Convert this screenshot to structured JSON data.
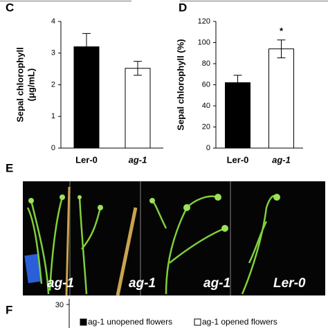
{
  "chart_data": [
    {
      "type": "bar",
      "panel": "C",
      "ylabel": [
        "Sepal chlorophyll",
        "(μg/mL)"
      ],
      "categories": [
        "Ler-0",
        "ag-1"
      ],
      "values": [
        3.2,
        2.52
      ],
      "errors": [
        0.42,
        0.22
      ],
      "colors": [
        "#000000",
        "#ffffff"
      ],
      "ylim": [
        0,
        4
      ],
      "yticks": [
        0,
        1,
        2,
        3,
        4
      ]
    },
    {
      "type": "bar",
      "panel": "D",
      "ylabel": [
        "Sepal chlorophyll (%)"
      ],
      "categories": [
        "Ler-0",
        "ag-1"
      ],
      "values": [
        62,
        94
      ],
      "errors": [
        7,
        8.5
      ],
      "annotations": [
        null,
        "*"
      ],
      "colors": [
        "#000000",
        "#ffffff"
      ],
      "ylim": [
        0,
        120
      ],
      "yticks": [
        0,
        20,
        40,
        60,
        80,
        100,
        120
      ]
    },
    {
      "type": "bar",
      "panel": "F",
      "yticks": [
        30
      ],
      "series": [
        {
          "name": "ag-1 unopened flowers",
          "color": "#000000"
        },
        {
          "name": "ag-1 opened flowers",
          "color": "#ffffff"
        }
      ]
    }
  ],
  "photo": {
    "panel": "E",
    "labels": [
      "ag-1",
      "ag-1",
      "ag-1",
      "Ler-0"
    ]
  }
}
